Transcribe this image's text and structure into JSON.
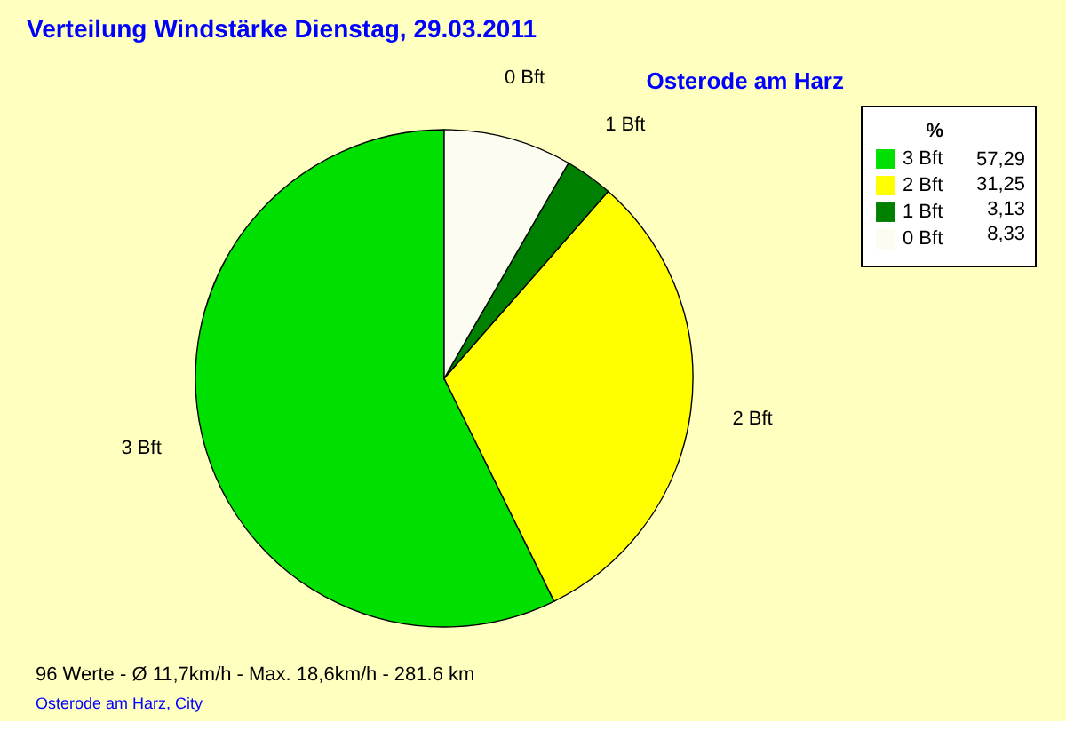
{
  "chart_data": {
    "type": "pie",
    "title": "Verteilung Windstärke  Dienstag, 29.03.2011",
    "subtitle": "Osterode am Harz",
    "categories": [
      "3 Bft",
      "2 Bft",
      "1 Bft",
      "0 Bft"
    ],
    "values": [
      57.29,
      31.25,
      3.13,
      8.33
    ],
    "value_labels": [
      "57,29",
      "31,25",
      "3,13",
      "8,33"
    ],
    "colors": [
      "#00e000",
      "#ffff00",
      "#008000",
      "#fcfcf0"
    ],
    "legend_title": "%",
    "legend": "top right",
    "annotations": [
      "96 Werte   -   Ø 11,7km/h  -  Max. 18,6km/h   -   281.6 km",
      "Osterode am Harz, City"
    ]
  }
}
